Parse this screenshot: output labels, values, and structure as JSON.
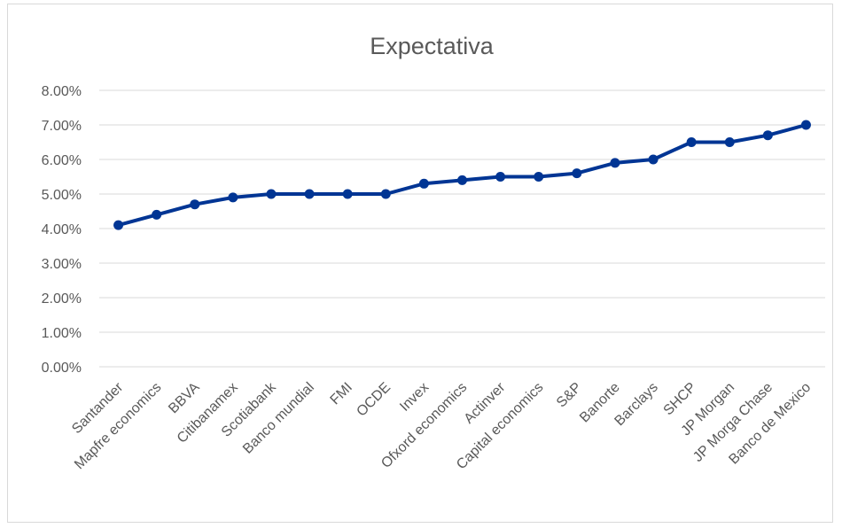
{
  "chart_data": {
    "type": "line",
    "title": "Expectativa",
    "xlabel": "",
    "ylabel": "",
    "categories": [
      "Santander",
      "Mapfre economics",
      "BBVA",
      "Citibanamex",
      "Scotiabank",
      "Banco mundial",
      "FMI",
      "OCDE",
      "Invex",
      "Ofxord economics",
      "Actinver",
      "Capital economics",
      "S&P",
      "Banorte",
      "Barclays",
      "SHCP",
      "JP Morgan",
      "JP Morga Chase",
      "Banco de Mexico"
    ],
    "series": [
      {
        "values": [
          0.041,
          0.044,
          0.047,
          0.049,
          0.05,
          0.05,
          0.05,
          0.05,
          0.053,
          0.054,
          0.055,
          0.055,
          0.056,
          0.059,
          0.06,
          0.065,
          0.065,
          0.067,
          0.07
        ],
        "color": "#003594"
      }
    ],
    "yticks": [
      "0.00%",
      "1.00%",
      "2.00%",
      "3.00%",
      "4.00%",
      "5.00%",
      "6.00%",
      "7.00%",
      "8.00%"
    ],
    "ylim": [
      0,
      0.08
    ],
    "grid": true,
    "legend": "none"
  }
}
